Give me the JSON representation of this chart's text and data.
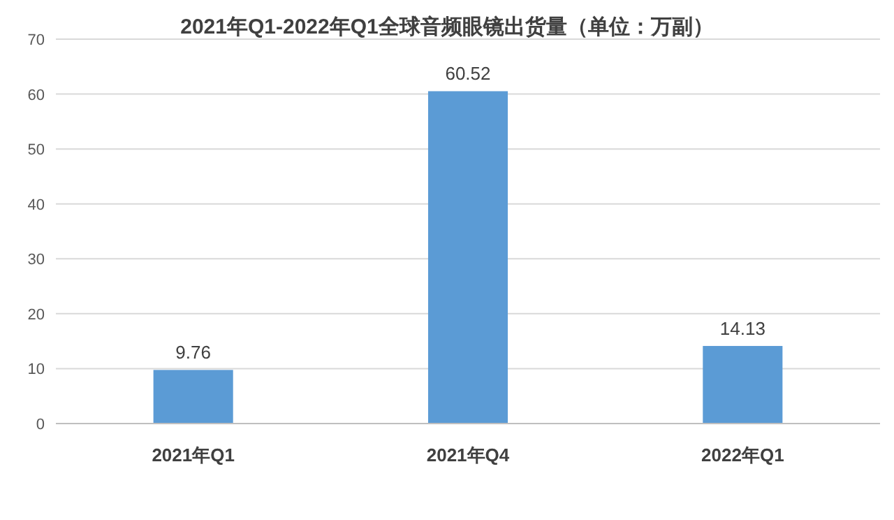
{
  "chart_data": {
    "type": "bar",
    "title": "2021年Q1-2022年Q1全球音频眼镜出货量（单位：万副）",
    "categories": [
      "2021年Q1",
      "2021年Q4",
      "2022年Q1"
    ],
    "values": [
      9.76,
      60.52,
      14.13
    ],
    "color": "#5b9bd5",
    "ylim": [
      0,
      70
    ],
    "yticks": [
      0,
      10,
      20,
      30,
      40,
      50,
      60,
      70
    ],
    "grid": "y",
    "data_labels": true
  }
}
